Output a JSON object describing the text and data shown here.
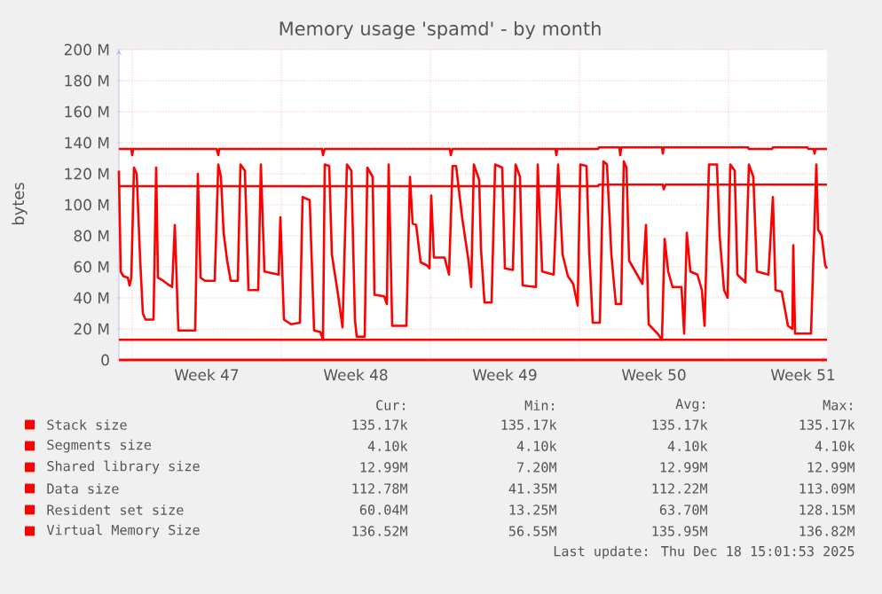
{
  "chart_data": {
    "type": "line",
    "title": "Memory usage 'spamd' - by month",
    "ylabel": "bytes",
    "xlim": [
      "2025-11-15T09:00",
      "2025-12-18T15:00"
    ],
    "ylim": [
      0,
      200
    ],
    "xticks": [
      {
        "value": "2025-11-16T00:00",
        "label": null
      },
      {
        "value": "2025-11-19T12:00",
        "label": "Week 47"
      },
      {
        "value": "2025-11-23T00:00",
        "label": null
      },
      {
        "value": "2025-11-26T12:00",
        "label": "Week 48"
      },
      {
        "value": "2025-11-30T00:00",
        "label": null
      },
      {
        "value": "2025-12-03T12:00",
        "label": "Week 49"
      },
      {
        "value": "2025-12-07T00:00",
        "label": null
      },
      {
        "value": "2025-12-10T12:00",
        "label": "Week 50"
      },
      {
        "value": "2025-12-14T00:00",
        "label": null
      },
      {
        "value": "2025-12-17T12:00",
        "label": "Week 51"
      }
    ],
    "yticks": [
      0,
      {
        "value": 20,
        "label": "20 M"
      },
      {
        "value": 40,
        "label": "40 M"
      },
      {
        "value": 60,
        "label": "60 M"
      },
      {
        "value": 80,
        "label": "80 M"
      },
      {
        "value": 100,
        "label": "100 M"
      },
      {
        "value": 120,
        "label": "120 M"
      },
      {
        "value": 140,
        "label": "140 M"
      },
      {
        "value": 160,
        "label": "160 M"
      },
      {
        "value": 180,
        "label": "180 M"
      },
      {
        "value": 200,
        "label": "200 M"
      }
    ],
    "grid": true,
    "legend": "bottom",
    "series": [
      {
        "name": "Stack size",
        "color": "#ff0000",
        "x": [
          "2025-11-15T09:00",
          "2025-12-18T15:00"
        ],
        "values": [
          0,
          0
        ]
      },
      {
        "name": "Segments size",
        "color": "#ff0000",
        "x": [
          "2025-11-15T09:00",
          "2025-12-18T15:00"
        ],
        "values": [
          0,
          0
        ]
      },
      {
        "name": "Shared library size",
        "color": "#ff0000",
        "x": [
          "2025-11-15T09:00",
          "2025-12-18T15:00"
        ],
        "values": [
          13,
          13
        ]
      },
      {
        "name": "Data size",
        "color": "#ff0000",
        "x": [
          "2025-11-15T09:00",
          "2025-12-07T21:00",
          "2025-12-07T22:00",
          "2025-12-10T22:00",
          "2025-12-10T23:00",
          "2025-12-11T01:00",
          "2025-12-18T15:00"
        ],
        "values": [
          112,
          112,
          113,
          113,
          110,
          113,
          113
        ]
      },
      {
        "name": "Resident set size",
        "color": "#ff0000",
        "x": [
          "2025-11-15T09:00",
          "2025-11-15T11:00",
          "2025-11-15T14:00",
          "2025-11-15T19:00",
          "2025-11-15T21:00",
          "2025-11-15T23:00",
          "2025-11-16T02:00",
          "2025-11-16T05:00",
          "2025-11-16T09:00",
          "2025-11-16T12:00",
          "2025-11-16T15:00",
          "2025-11-17T00:00",
          "2025-11-17T03:00",
          "2025-11-17T05:00",
          "2025-11-17T11:00",
          "2025-11-17T18:00",
          "2025-11-17T21:00",
          "2025-11-18T00:00",
          "2025-11-18T04:00",
          "2025-11-18T23:00",
          "2025-11-19T02:00",
          "2025-11-19T05:00",
          "2025-11-19T10:00",
          "2025-11-19T21:00",
          "2025-11-20T01:00",
          "2025-11-20T04:00",
          "2025-11-20T07:00",
          "2025-11-20T11:00",
          "2025-11-20T15:00",
          "2025-11-20T23:00",
          "2025-11-21T02:00",
          "2025-11-21T07:00",
          "2025-11-21T11:00",
          "2025-11-21T22:00",
          "2025-11-22T01:00",
          "2025-11-22T05:00",
          "2025-11-22T21:00",
          "2025-11-22T23:00",
          "2025-11-23T03:00",
          "2025-11-23T11:00",
          "2025-11-23T21:00",
          "2025-11-24T00:00",
          "2025-11-24T08:00",
          "2025-11-24T13:00",
          "2025-11-24T20:00",
          "2025-11-24T23:00",
          "2025-11-25T01:00",
          "2025-11-25T06:00",
          "2025-11-25T09:00",
          "2025-11-25T16:00",
          "2025-11-25T21:00",
          "2025-11-26T02:00",
          "2025-11-26T07:00",
          "2025-11-26T11:00",
          "2025-11-26T13:00",
          "2025-11-26T22:00",
          "2025-11-27T01:00",
          "2025-11-27T07:00",
          "2025-11-27T09:00",
          "2025-11-27T20:00",
          "2025-11-27T23:00",
          "2025-11-28T01:00",
          "2025-11-28T05:00",
          "2025-11-28T21:00",
          "2025-11-29T01:00",
          "2025-11-29T04:00",
          "2025-11-29T08:00",
          "2025-11-29T13:00",
          "2025-11-29T20:00",
          "2025-11-29T23:00",
          "2025-11-30T01:00",
          "2025-11-30T04:00",
          "2025-11-30T16:00",
          "2025-11-30T21:00",
          "2025-12-01T01:00",
          "2025-12-01T05:00",
          "2025-12-01T12:00",
          "2025-12-01T19:00",
          "2025-12-01T22:00",
          "2025-12-02T01:00",
          "2025-12-02T07:00",
          "2025-12-02T09:00",
          "2025-12-02T13:00",
          "2025-12-02T21:00",
          "2025-12-03T01:00",
          "2025-12-03T09:00",
          "2025-12-03T12:00",
          "2025-12-03T21:00",
          "2025-12-04T00:00",
          "2025-12-04T05:00",
          "2025-12-04T08:00",
          "2025-12-04T23:00",
          "2025-12-05T01:00",
          "2025-12-05T06:00",
          "2025-12-05T19:00",
          "2025-12-06T00:00",
          "2025-12-06T05:00",
          "2025-12-06T11:00",
          "2025-12-06T17:00",
          "2025-12-06T22:00",
          "2025-12-07T01:00",
          "2025-12-07T08:00",
          "2025-12-07T11:00",
          "2025-12-07T15:00",
          "2025-12-07T23:00",
          "2025-12-08T03:00",
          "2025-12-08T07:00",
          "2025-12-08T12:00",
          "2025-12-08T17:00",
          "2025-12-08T23:00",
          "2025-12-09T02:00",
          "2025-12-09T05:00",
          "2025-12-09T08:00",
          "2025-12-09T17:00",
          "2025-12-09T23:00",
          "2025-12-10T03:00",
          "2025-12-10T06:00",
          "2025-12-10T16:00",
          "2025-12-10T21:00",
          "2025-12-11T00:00",
          "2025-12-11T04:00",
          "2025-12-11T09:00",
          "2025-12-11T19:00",
          "2025-12-11T22:00",
          "2025-12-12T01:00",
          "2025-12-12T05:00",
          "2025-12-12T13:00",
          "2025-12-12T18:00",
          "2025-12-12T21:00",
          "2025-12-13T02:00",
          "2025-12-13T11:00",
          "2025-12-13T14:00",
          "2025-12-13T19:00",
          "2025-12-13T23:00",
          "2025-12-14T02:00",
          "2025-12-14T07:00",
          "2025-12-14T10:00",
          "2025-12-14T19:00",
          "2025-12-14T23:00",
          "2025-12-15T04:00",
          "2025-12-15T08:00",
          "2025-12-15T21:00",
          "2025-12-16T02:00",
          "2025-12-16T05:00",
          "2025-12-16T12:00",
          "2025-12-16T19:00",
          "2025-12-17T00:00",
          "2025-12-17T01:00",
          "2025-12-17T03:00",
          "2025-12-17T21:00",
          "2025-12-18T03:00",
          "2025-12-18T05:00",
          "2025-12-18T09:00",
          "2025-12-18T13:00",
          "2025-12-18T15:00"
        ],
        "values": [
          122,
          57,
          54,
          53,
          48,
          53,
          124,
          120,
          64,
          30,
          26,
          26,
          124,
          53,
          51,
          48,
          47,
          87,
          19,
          19,
          120,
          53,
          51,
          51,
          126,
          118,
          82,
          64,
          51,
          51,
          126,
          122,
          45,
          45,
          126,
          57,
          55,
          92,
          26,
          23,
          24,
          105,
          103,
          19,
          18,
          13,
          126,
          125,
          68,
          42,
          21,
          126,
          122,
          26,
          15,
          15,
          124,
          118,
          42,
          41,
          36,
          126,
          22,
          22,
          118,
          88,
          87,
          63,
          61,
          59,
          106,
          66,
          66,
          55,
          125,
          125,
          91,
          64,
          47,
          126,
          116,
          72,
          37,
          37,
          126,
          124,
          59,
          58,
          126,
          118,
          48,
          47,
          126,
          57,
          55,
          126,
          68,
          54,
          49,
          35,
          126,
          125,
          70,
          24,
          24,
          128,
          126,
          68,
          36,
          36,
          128,
          124,
          64,
          55,
          49,
          87,
          23,
          17,
          13,
          78,
          57,
          47,
          47,
          17,
          82,
          57,
          55,
          45,
          22,
          126,
          126,
          80,
          45,
          40,
          126,
          122,
          55,
          50,
          126,
          118,
          57,
          55,
          105,
          45,
          44,
          22,
          20,
          74,
          17,
          17,
          126,
          84,
          80,
          61,
          59
        ]
      },
      {
        "name": "Virtual Memory Size",
        "color": "#ff0000",
        "x": [
          "2025-11-15T09:00",
          "2025-11-15T23:00",
          "2025-11-16T00:00",
          "2025-11-16T01:00",
          "2025-11-19T23:00",
          "2025-11-20T01:00",
          "2025-11-20T02:00",
          "2025-11-24T22:00",
          "2025-11-24T23:00",
          "2025-11-25T01:00",
          "2025-11-30T22:00",
          "2025-11-30T23:00",
          "2025-12-01T01:00",
          "2025-12-05T21:00",
          "2025-12-05T22:00",
          "2025-12-05T23:00",
          "2025-12-07T21:00",
          "2025-12-07T22:00",
          "2025-12-08T21:00",
          "2025-12-08T22:00",
          "2025-12-08T23:00",
          "2025-12-10T21:00",
          "2025-12-10T22:00",
          "2025-12-10T23:00",
          "2025-12-14T22:00",
          "2025-12-14T23:00",
          "2025-12-16T01:00",
          "2025-12-16T02:00",
          "2025-12-17T17:00",
          "2025-12-17T18:00",
          "2025-12-18T00:00",
          "2025-12-18T01:00",
          "2025-12-18T02:00",
          "2025-12-18T15:00"
        ],
        "values": [
          136,
          136,
          132,
          136,
          136,
          132,
          136,
          136,
          132,
          136,
          136,
          132,
          136,
          136,
          132,
          136,
          136,
          137,
          137,
          132,
          137,
          137,
          133,
          137,
          137,
          136,
          136,
          137,
          137,
          136,
          136,
          133,
          136,
          136
        ]
      }
    ],
    "annotations": [
      "Cur:",
      "Min:",
      "Avg:",
      "Max:",
      "135.17k",
      "135.17k",
      "135.17k",
      "135.17k",
      "4.10k",
      "4.10k",
      "4.10k",
      "4.10k",
      "12.99M",
      "7.20M",
      "12.99M",
      "12.99M",
      "112.78M",
      "41.35M",
      "112.22M",
      "113.09M",
      "60.04M",
      "13.25M",
      "63.70M",
      "128.15M",
      "136.52M",
      "56.55M",
      "135.95M",
      "136.82M",
      "Last update: Thu Dec 18 15:01:53 2025"
    ]
  }
}
